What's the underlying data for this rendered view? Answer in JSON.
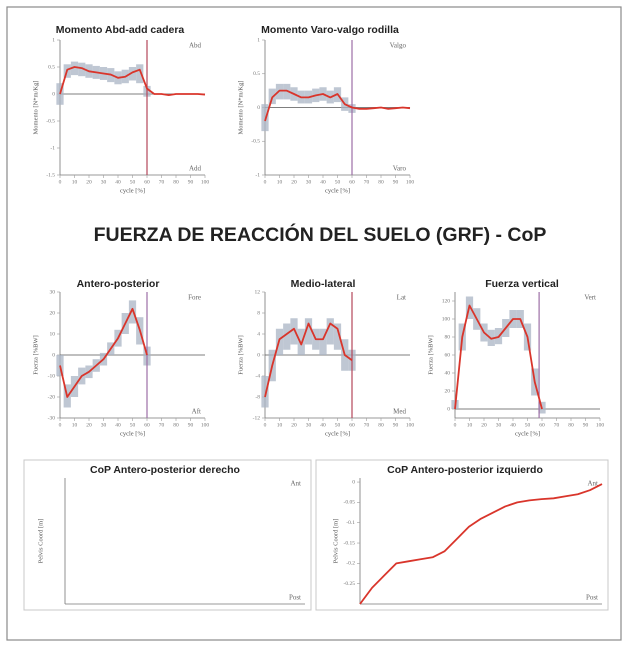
{
  "section_title": "FUERZA DE REACCIÓN DEL SUELO (GRF) - CoP",
  "chart_data": [
    {
      "type": "line",
      "title": "Momento Abd-add cadera",
      "xlabel": "cycle [%]",
      "ylabel": "Momento [N*m/Kg]",
      "annotation_top": "Abd",
      "annotation_bottom": "Add",
      "color": "#d9352b",
      "band_color": "#aab4c4",
      "x": [
        0,
        5,
        10,
        15,
        20,
        25,
        30,
        35,
        40,
        45,
        50,
        55,
        60,
        65,
        70,
        75,
        80,
        85,
        90,
        95,
        100
      ],
      "values": [
        0,
        0.45,
        0.5,
        0.48,
        0.42,
        0.4,
        0.38,
        0.36,
        0.3,
        0.32,
        0.4,
        0.45,
        0.1,
        0,
        0,
        -0.02,
        0,
        0,
        0,
        0,
        -0.01
      ],
      "band_low": [
        -0.2,
        0.3,
        0.35,
        0.33,
        0.3,
        0.28,
        0.26,
        0.22,
        0.18,
        0.2,
        0.25,
        0.2,
        -0.05,
        null,
        null,
        null,
        null,
        null,
        null,
        null,
        null
      ],
      "band_high": [
        0.2,
        0.55,
        0.6,
        0.58,
        0.55,
        0.52,
        0.5,
        0.48,
        0.42,
        0.45,
        0.5,
        0.55,
        0.15,
        null,
        null,
        null,
        null,
        null,
        null,
        null,
        null
      ],
      "xlim": [
        0,
        100
      ],
      "ylim": [
        -1.5,
        1
      ],
      "xticks": [
        0,
        10,
        20,
        30,
        40,
        50,
        60,
        70,
        80,
        90,
        100
      ],
      "yticks": [
        -1.5,
        -1,
        -0.5,
        0,
        0.5,
        1
      ],
      "vline": 60,
      "vline_color": "#b5465a",
      "hline": 0
    },
    {
      "type": "line",
      "title": "Momento Varo-valgo rodilla",
      "xlabel": "cycle [%]",
      "ylabel": "Momento [N*m/Kg]",
      "annotation_top": "Valgo",
      "annotation_bottom": "Varo",
      "color": "#d9352b",
      "band_color": "#aab4c4",
      "x": [
        0,
        5,
        10,
        15,
        20,
        25,
        30,
        35,
        40,
        45,
        50,
        55,
        60,
        65,
        70,
        75,
        80,
        85,
        90,
        95,
        100
      ],
      "values": [
        -0.2,
        0.15,
        0.25,
        0.25,
        0.2,
        0.15,
        0.15,
        0.18,
        0.2,
        0.15,
        0.2,
        0.05,
        0,
        -0.02,
        -0.02,
        -0.01,
        0,
        -0.02,
        -0.01,
        0,
        -0.01
      ],
      "band_low": [
        -0.35,
        0.05,
        0.12,
        0.12,
        0.1,
        0.06,
        0.06,
        0.08,
        0.1,
        0.06,
        0.08,
        -0.05,
        -0.08,
        null,
        null,
        null,
        null,
        null,
        null,
        null,
        null
      ],
      "band_high": [
        0.05,
        0.28,
        0.35,
        0.35,
        0.3,
        0.25,
        0.25,
        0.28,
        0.3,
        0.25,
        0.3,
        0.15,
        0.05,
        null,
        null,
        null,
        null,
        null,
        null,
        null,
        null
      ],
      "xlim": [
        0,
        100
      ],
      "ylim": [
        -1,
        1
      ],
      "xticks": [
        0,
        10,
        20,
        30,
        40,
        50,
        60,
        70,
        80,
        90,
        100
      ],
      "yticks": [
        -1,
        -0.5,
        0,
        0.5,
        1
      ],
      "vline": 60,
      "vline_color": "#9c6fa6",
      "hline": 0
    },
    {
      "type": "line",
      "title": "Antero-posterior",
      "xlabel": "cycle [%]",
      "ylabel": "Fuerza [%BW]",
      "annotation_top": "Fore",
      "annotation_bottom": "Aft",
      "color": "#d9352b",
      "band_color": "#aab4c4",
      "x": [
        0,
        5,
        10,
        15,
        20,
        25,
        30,
        35,
        40,
        45,
        50,
        55,
        60
      ],
      "values": [
        -5,
        -20,
        -15,
        -10,
        -8,
        -5,
        -2,
        3,
        8,
        15,
        22,
        12,
        0
      ],
      "band_low": [
        -10,
        -25,
        -20,
        -14,
        -11,
        -8,
        -5,
        0,
        4,
        10,
        15,
        5,
        -5
      ],
      "band_high": [
        0,
        -14,
        -10,
        -6,
        -5,
        -2,
        1,
        6,
        12,
        20,
        26,
        18,
        4
      ],
      "xlim": [
        0,
        100
      ],
      "ylim": [
        -30,
        30
      ],
      "xticks": [
        0,
        10,
        20,
        30,
        40,
        50,
        60,
        70,
        80,
        90,
        100
      ],
      "yticks": [
        -30,
        -20,
        -10,
        0,
        10,
        20,
        30
      ],
      "vline": 60,
      "vline_color": "#9c6fa6",
      "hline": 0
    },
    {
      "type": "line",
      "title": "Medio-lateral",
      "xlabel": "cycle [%]",
      "ylabel": "Fuerza [%BW]",
      "annotation_top": "Lat",
      "annotation_bottom": "Med",
      "color": "#d9352b",
      "band_color": "#aab4c4",
      "x": [
        0,
        5,
        10,
        15,
        20,
        25,
        30,
        35,
        40,
        45,
        50,
        55,
        60
      ],
      "values": [
        -8,
        -2,
        3,
        4,
        5,
        2,
        6,
        3,
        3,
        6,
        5,
        0,
        -1
      ],
      "band_low": [
        -10,
        -5,
        0,
        1,
        2,
        0,
        2,
        1,
        0,
        2,
        1,
        -3,
        -3
      ],
      "band_high": [
        -4,
        1,
        5,
        6,
        7,
        5,
        7,
        5,
        5,
        7,
        6,
        3,
        1
      ],
      "xlim": [
        0,
        100
      ],
      "ylim": [
        -12,
        12
      ],
      "xticks": [
        0,
        10,
        20,
        30,
        40,
        50,
        60,
        70,
        80,
        90,
        100
      ],
      "yticks": [
        -12,
        -8,
        -4,
        0,
        4,
        8,
        12
      ],
      "vline": 60,
      "vline_color": "#b5465a",
      "hline": 0
    },
    {
      "type": "line",
      "title": "Fuerza vertical",
      "xlabel": "cycle [%]",
      "ylabel": "Fuerza [%BW]",
      "annotation_top": "Vert",
      "color": "#d9352b",
      "band_color": "#aab4c4",
      "x": [
        0,
        5,
        10,
        15,
        20,
        25,
        30,
        35,
        40,
        45,
        50,
        55,
        60
      ],
      "values": [
        0,
        80,
        115,
        100,
        85,
        78,
        80,
        90,
        100,
        100,
        80,
        30,
        0
      ],
      "band_low": [
        0,
        65,
        100,
        88,
        75,
        70,
        72,
        80,
        90,
        90,
        65,
        15,
        -5
      ],
      "band_high": [
        10,
        95,
        125,
        112,
        95,
        88,
        90,
        100,
        110,
        110,
        95,
        45,
        8
      ],
      "xlim": [
        0,
        100
      ],
      "ylim": [
        -10,
        130
      ],
      "xticks": [
        0,
        10,
        20,
        30,
        40,
        50,
        60,
        70,
        80,
        90,
        100
      ],
      "yticks": [
        0,
        20,
        40,
        60,
        80,
        100,
        120
      ],
      "vline": 58,
      "vline_color": "#9c6fa6",
      "hline": 0
    },
    {
      "type": "line",
      "title": "CoP Antero-posterior derecho",
      "ylabel": "Pelvis Coord [m]",
      "annotation_top": "Ant",
      "annotation_bottom": "Post"
    },
    {
      "type": "line",
      "title": "CoP Antero-posterior izquierdo",
      "ylabel": "Pelvis Coord [m]",
      "annotation_top": "Ant",
      "annotation_bottom": "Post",
      "color": "#d9352b",
      "x": [
        0,
        5,
        10,
        15,
        20,
        25,
        30,
        35,
        40,
        45,
        50,
        55,
        60,
        65,
        70,
        75,
        80,
        85,
        90,
        95,
        100
      ],
      "values": [
        -0.3,
        -0.26,
        -0.23,
        -0.2,
        -0.195,
        -0.19,
        -0.185,
        -0.17,
        -0.14,
        -0.11,
        -0.09,
        -0.075,
        -0.06,
        -0.05,
        -0.045,
        -0.042,
        -0.04,
        -0.035,
        -0.03,
        -0.02,
        -0.005
      ],
      "xlim": [
        0,
        100
      ],
      "ylim": [
        -0.3,
        0.01
      ],
      "yticks": [
        -0.25,
        -0.2,
        -0.15,
        -0.1,
        -0.05,
        0
      ]
    }
  ]
}
